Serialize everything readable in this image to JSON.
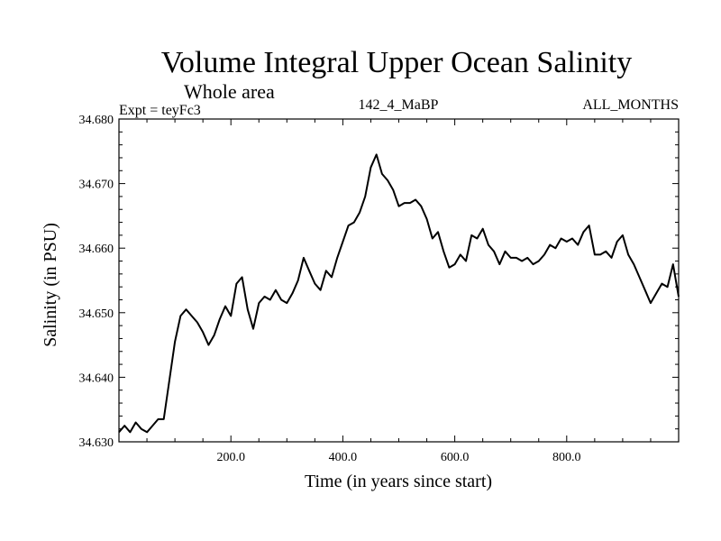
{
  "chart_data": {
    "type": "line",
    "title": "Volume Integral Upper Ocean Salinity",
    "subtitle": "Whole area",
    "experiment": "Expt = teyFc3",
    "run_id": "142_4_MaBP",
    "months": "ALL_MONTHS",
    "xlabel": "Time (in years since start)",
    "ylabel": "Salinity (in PSU)",
    "xlim": [
      0,
      1000
    ],
    "ylim": [
      34.63,
      34.68
    ],
    "x_ticks": [
      200,
      400,
      600,
      800
    ],
    "x_tick_labels": [
      "200.0",
      "400.0",
      "600.0",
      "800.0"
    ],
    "y_ticks": [
      34.63,
      34.64,
      34.65,
      34.66,
      34.67,
      34.68
    ],
    "y_tick_labels": [
      "34.630",
      "34.640",
      "34.650",
      "34.660",
      "34.670",
      "34.680"
    ],
    "grid": false,
    "series": [
      {
        "name": "Salinity",
        "color": "#000000",
        "x": [
          0,
          10,
          20,
          30,
          40,
          50,
          60,
          70,
          80,
          90,
          100,
          110,
          120,
          130,
          140,
          150,
          160,
          170,
          180,
          190,
          200,
          210,
          220,
          230,
          240,
          250,
          260,
          270,
          280,
          290,
          300,
          310,
          320,
          330,
          340,
          350,
          360,
          370,
          380,
          390,
          400,
          410,
          420,
          430,
          440,
          450,
          460,
          470,
          480,
          490,
          500,
          510,
          520,
          530,
          540,
          550,
          560,
          570,
          580,
          590,
          600,
          610,
          620,
          630,
          640,
          650,
          660,
          670,
          680,
          690,
          700,
          710,
          720,
          730,
          740,
          750,
          760,
          770,
          780,
          790,
          800,
          810,
          820,
          830,
          840,
          850,
          860,
          870,
          880,
          890,
          900,
          910,
          920,
          930,
          940,
          950,
          960,
          970,
          980,
          990,
          1000
        ],
        "values": [
          34.6315,
          34.6325,
          34.6315,
          34.633,
          34.632,
          34.6315,
          34.6325,
          34.6335,
          34.6335,
          34.6395,
          34.6455,
          34.6495,
          34.6505,
          34.6495,
          34.6485,
          34.647,
          34.645,
          34.6465,
          34.649,
          34.651,
          34.6495,
          34.6545,
          34.6555,
          34.6505,
          34.6475,
          34.6515,
          34.6525,
          34.652,
          34.6535,
          34.652,
          34.6515,
          34.653,
          34.655,
          34.6585,
          34.6565,
          34.6545,
          34.6535,
          34.6565,
          34.6555,
          34.6585,
          34.661,
          34.6635,
          34.664,
          34.6655,
          34.668,
          34.6725,
          34.6745,
          34.6715,
          34.6705,
          34.669,
          34.6665,
          34.667,
          34.667,
          34.6675,
          34.6665,
          34.6645,
          34.6615,
          34.6625,
          34.6595,
          34.657,
          34.6575,
          34.659,
          34.658,
          34.662,
          34.6615,
          34.663,
          34.6605,
          34.6595,
          34.6575,
          34.6595,
          34.6585,
          34.6585,
          34.658,
          34.6585,
          34.6575,
          34.658,
          34.659,
          34.6605,
          34.66,
          34.6615,
          34.661,
          34.6615,
          34.6605,
          34.6625,
          34.6635,
          34.659,
          34.659,
          34.6595,
          34.6585,
          34.661,
          34.662,
          34.659,
          34.6575,
          34.6555,
          34.6535,
          34.6515,
          34.653,
          34.6545,
          34.654,
          34.6575,
          34.6525
        ]
      }
    ]
  }
}
